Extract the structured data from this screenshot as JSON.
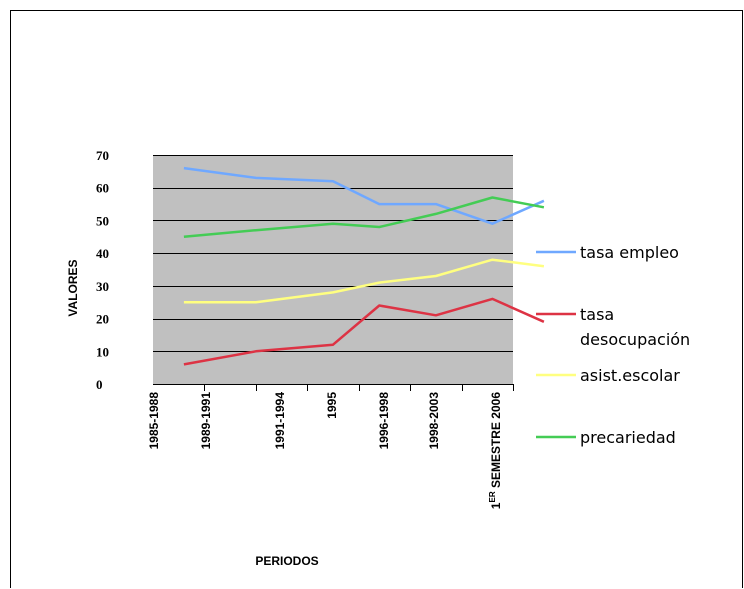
{
  "chart_data": {
    "type": "line",
    "categories": [
      "1985-1988",
      "1989-1991",
      "1991-1994",
      "1995",
      "1996-1998",
      "1998-2003",
      "1ER SEMESTRE 2006"
    ],
    "categories_display": {
      "last_main": "1",
      "last_sup": "ER",
      "last_rest": " SEMESTRE 2006"
    },
    "x": [
      0.6,
      2,
      3.5,
      4.4,
      5.5,
      6.6,
      7.6
    ],
    "series": [
      {
        "name": "tasa empleo",
        "color": "#6fa8ff",
        "values": [
          66,
          63,
          62,
          55,
          55,
          49,
          56
        ]
      },
      {
        "name": "tasa desocupación",
        "color": "#dd3344",
        "values": [
          6,
          10,
          12,
          24,
          21,
          26,
          19
        ]
      },
      {
        "name": "asist.escolar",
        "color": "#ffff80",
        "values": [
          25,
          25,
          28,
          31,
          33,
          38,
          36
        ]
      },
      {
        "name": "precariedad",
        "color": "#44cc55",
        "values": [
          45,
          47,
          49,
          48,
          52,
          57,
          54
        ]
      }
    ],
    "legend_labels": [
      [
        "tasa empleo"
      ],
      [
        "tasa",
        "desocupación"
      ],
      [
        "asist.escolar"
      ],
      [
        "precariedad"
      ]
    ],
    "xlabel": "PERIODOS",
    "ylabel": "VALORES",
    "yticks": [
      0,
      10,
      20,
      30,
      40,
      50,
      60,
      70
    ],
    "ylim": [
      0,
      70
    ],
    "grid": true,
    "plot_background": "#c0c0c0",
    "legend_position": "right"
  }
}
